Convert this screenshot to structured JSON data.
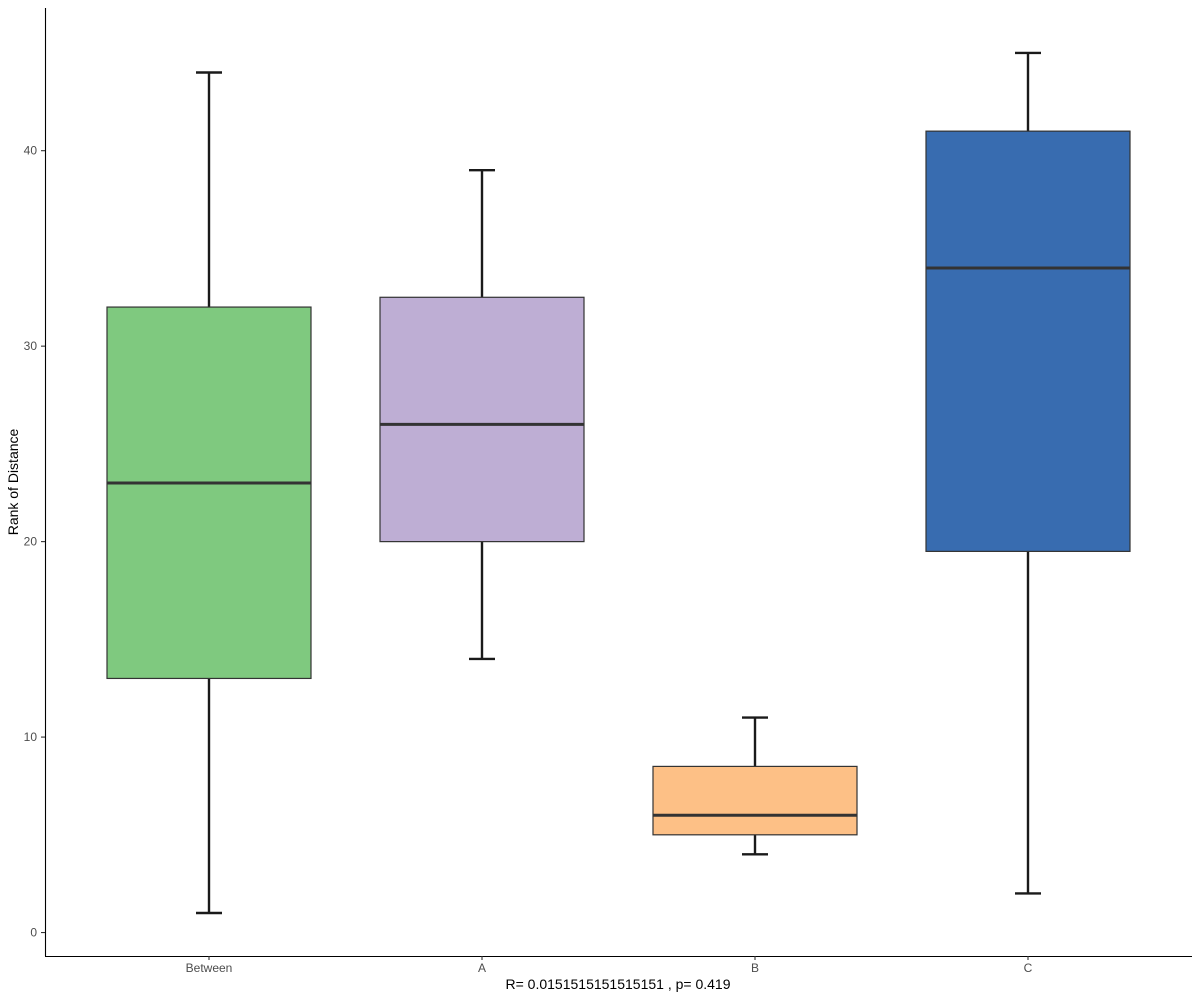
{
  "chart_data": {
    "type": "boxplot",
    "title": "",
    "xlabel": "R= 0.0151515151515151 ,  p= 0.419",
    "ylabel": "Rank of Distance",
    "ylim": [
      -1.2,
      47.3
    ],
    "yticks": [
      0,
      10,
      20,
      30,
      40
    ],
    "grid": false,
    "legend": "none",
    "categories": [
      "Between",
      "A",
      "B",
      "C"
    ],
    "boxes": [
      {
        "category": "Between",
        "min": 1,
        "q1": 13,
        "median": 23,
        "q3": 32,
        "max": 44,
        "color": "#7fc97f"
      },
      {
        "category": "A",
        "min": 14,
        "q1": 20,
        "median": 26,
        "q3": 32.5,
        "max": 39,
        "color": "#beaed4"
      },
      {
        "category": "B",
        "min": 4,
        "q1": 5,
        "median": 6,
        "q3": 8.5,
        "max": 11,
        "color": "#fdc086"
      },
      {
        "category": "C",
        "min": 2,
        "q1": 19.5,
        "median": 34,
        "q3": 41,
        "max": 45,
        "color": "#386cb0"
      }
    ]
  }
}
